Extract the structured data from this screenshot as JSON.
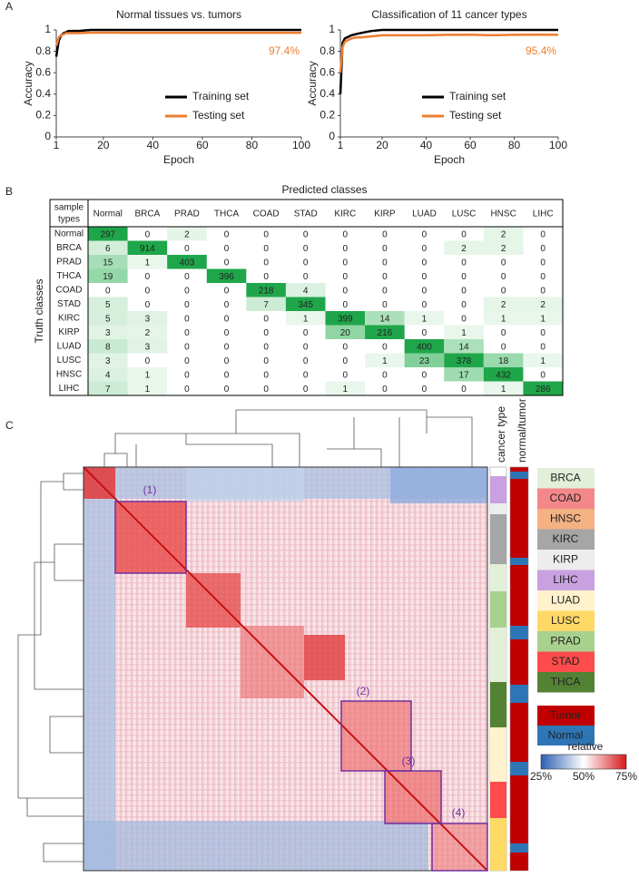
{
  "panels": [
    "A",
    "B",
    "C"
  ],
  "chart_data": [
    {
      "type": "line",
      "title": "Normal tissues vs. tumors",
      "xlabel": "Epoch",
      "ylabel": "Accuracy",
      "annotation": "97.4%",
      "x": [
        1,
        2,
        3,
        4,
        5,
        6,
        8,
        10,
        15,
        20,
        30,
        40,
        50,
        60,
        70,
        80,
        90,
        100
      ],
      "series": [
        {
          "name": "Training set",
          "color": "#000000",
          "values": [
            0.75,
            0.9,
            0.95,
            0.97,
            0.98,
            0.99,
            0.99,
            0.99,
            1,
            1,
            1,
            1,
            1,
            1,
            1,
            1,
            1,
            1
          ]
        },
        {
          "name": "Testing set",
          "color": "#ed7d31",
          "values": [
            0.85,
            0.93,
            0.95,
            0.96,
            0.97,
            0.97,
            0.97,
            0.97,
            0.975,
            0.975,
            0.974,
            0.974,
            0.974,
            0.974,
            0.974,
            0.974,
            0.974,
            0.974
          ]
        }
      ],
      "xlim": [
        1,
        100
      ],
      "ylim": [
        0,
        1
      ],
      "xticks": [
        1,
        20,
        40,
        60,
        80,
        100
      ],
      "yticks": [
        0,
        0.2,
        0.4,
        0.6,
        0.8,
        1
      ],
      "legend": "lower right"
    },
    {
      "type": "line",
      "title": "Classification of 11 cancer types",
      "xlabel": "Epoch",
      "ylabel": "Accuracy",
      "annotation": "95.4%",
      "x": [
        1,
        2,
        3,
        4,
        5,
        6,
        8,
        10,
        15,
        20,
        30,
        40,
        50,
        60,
        70,
        80,
        90,
        100
      ],
      "series": [
        {
          "name": "Training set",
          "color": "#000000",
          "values": [
            0.4,
            0.88,
            0.92,
            0.93,
            0.94,
            0.95,
            0.96,
            0.97,
            0.99,
            1,
            1,
            1,
            1,
            1,
            1,
            1,
            1,
            1
          ]
        },
        {
          "name": "Testing set",
          "color": "#ed7d31",
          "values": [
            0.6,
            0.84,
            0.89,
            0.9,
            0.91,
            0.92,
            0.93,
            0.93,
            0.94,
            0.95,
            0.95,
            0.95,
            0.954,
            0.955,
            0.95,
            0.954,
            0.955,
            0.954
          ]
        }
      ],
      "xlim": [
        1,
        100
      ],
      "ylim": [
        0,
        1
      ],
      "xticks": [
        1,
        20,
        40,
        60,
        80,
        100
      ],
      "yticks": [
        0,
        0.2,
        0.4,
        0.6,
        0.8,
        1
      ],
      "legend": "lower right"
    }
  ],
  "confusion_matrix": {
    "title": "Predicted classes",
    "row_axis_label": "Truth classes",
    "corner_label": [
      "sample",
      "types"
    ],
    "columns": [
      "Normal",
      "BRCA",
      "PRAD",
      "THCA",
      "COAD",
      "STAD",
      "KIRC",
      "KIRP",
      "LUAD",
      "LUSC",
      "HNSC",
      "LIHC"
    ],
    "rows": [
      {
        "label": "Normal",
        "values": [
          297,
          0,
          2,
          0,
          0,
          0,
          0,
          0,
          0,
          0,
          2,
          0
        ]
      },
      {
        "label": "BRCA",
        "values": [
          6,
          914,
          0,
          0,
          0,
          0,
          0,
          0,
          0,
          2,
          2,
          0
        ]
      },
      {
        "label": "PRAD",
        "values": [
          15,
          1,
          403,
          0,
          0,
          0,
          0,
          0,
          0,
          0,
          0,
          0
        ]
      },
      {
        "label": "THCA",
        "values": [
          19,
          0,
          0,
          396,
          0,
          0,
          0,
          0,
          0,
          0,
          0,
          0
        ]
      },
      {
        "label": "COAD",
        "values": [
          0,
          0,
          0,
          0,
          218,
          4,
          0,
          0,
          0,
          0,
          0,
          0
        ]
      },
      {
        "label": "STAD",
        "values": [
          5,
          0,
          0,
          0,
          7,
          345,
          0,
          0,
          0,
          0,
          2,
          2
        ]
      },
      {
        "label": "KIRC",
        "values": [
          5,
          3,
          0,
          0,
          0,
          1,
          399,
          14,
          1,
          0,
          1,
          1
        ]
      },
      {
        "label": "KIRP",
        "values": [
          3,
          2,
          0,
          0,
          0,
          0,
          20,
          216,
          0,
          1,
          0,
          0
        ]
      },
      {
        "label": "LUAD",
        "values": [
          8,
          3,
          0,
          0,
          0,
          0,
          0,
          0,
          400,
          14,
          0,
          0
        ]
      },
      {
        "label": "LUSC",
        "values": [
          3,
          0,
          0,
          0,
          0,
          0,
          0,
          1,
          23,
          378,
          18,
          1
        ]
      },
      {
        "label": "HNSC",
        "values": [
          4,
          1,
          0,
          0,
          0,
          0,
          0,
          0,
          0,
          17,
          432,
          0
        ]
      },
      {
        "label": "LIHC",
        "values": [
          7,
          1,
          0,
          0,
          0,
          0,
          1,
          0,
          0,
          0,
          1,
          286
        ]
      }
    ]
  },
  "clustering": {
    "cancer_type_label": "cancer type",
    "normal_tumor_label": "normal/tumor",
    "box_labels": [
      "(1)",
      "(2)",
      "(3)",
      "(4)"
    ],
    "cancer_legend": [
      {
        "label": "BRCA",
        "color": "#e2efd9"
      },
      {
        "label": "COAD",
        "color": "#f4878a"
      },
      {
        "label": "HNSC",
        "color": "#f4b183"
      },
      {
        "label": "KIRC",
        "color": "#a6a6a6"
      },
      {
        "label": "KIRP",
        "color": "#ededed"
      },
      {
        "label": "LIHC",
        "color": "#c9a0e0"
      },
      {
        "label": "LUAD",
        "color": "#fff2cc"
      },
      {
        "label": "LUSC",
        "color": "#ffd966"
      },
      {
        "label": "PRAD",
        "color": "#a9d18e"
      },
      {
        "label": "STAD",
        "color": "#ff4b4b"
      },
      {
        "label": "THCA",
        "color": "#548235"
      }
    ],
    "status_legend": [
      {
        "label": "Tumor",
        "color": "#c00000"
      },
      {
        "label": "Normal",
        "color": "#2e75b6"
      }
    ],
    "colorbar": {
      "title": "relative",
      "lim": [
        25,
        75
      ],
      "ticks": [
        {
          "value": 25,
          "label": "25%"
        },
        {
          "value": 50,
          "label": "50%"
        },
        {
          "value": 75,
          "label": "75%"
        }
      ]
    }
  }
}
